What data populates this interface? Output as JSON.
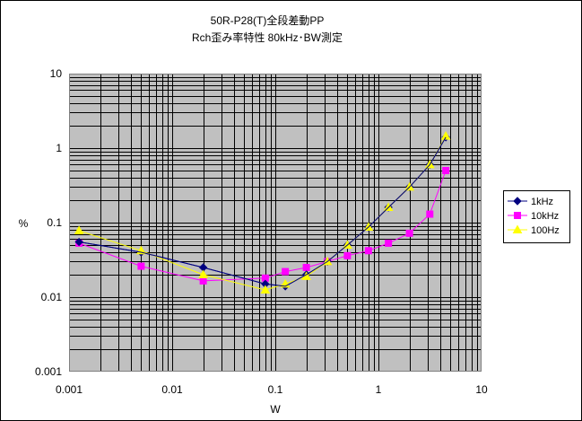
{
  "chart_data": {
    "type": "line",
    "title": "50R-P28(T)全段差動PP",
    "subtitle": "Rch歪み率特性  80kHz･BW測定",
    "xlabel": "W",
    "ylabel": "%",
    "x_scale": "log",
    "y_scale": "log",
    "xlim": [
      0.001,
      10
    ],
    "ylim": [
      0.001,
      10
    ],
    "x_ticks": [
      0.001,
      0.01,
      0.1,
      1,
      10
    ],
    "x_tick_labels": [
      "0.001",
      "0.01",
      "0.1",
      "1",
      "10"
    ],
    "y_ticks": [
      0.001,
      0.01,
      0.1,
      1,
      10
    ],
    "y_tick_labels": [
      "0.001",
      "0.01",
      "0.1",
      "1",
      "10"
    ],
    "grid": true,
    "legend_position": "right",
    "plot_background": "#c0c0c0",
    "series": [
      {
        "name": "1kHz",
        "color": "#000080",
        "marker": "diamond",
        "points": [
          [
            0.00125,
            0.055
          ],
          [
            0.005,
            0.04
          ],
          [
            0.02,
            0.025
          ],
          [
            0.08,
            0.015
          ],
          [
            0.125,
            0.014
          ],
          [
            0.2,
            0.02
          ],
          [
            0.32,
            0.03
          ],
          [
            0.5,
            0.05
          ],
          [
            0.8,
            0.087
          ],
          [
            1.25,
            0.16
          ],
          [
            2,
            0.3
          ],
          [
            3.15,
            0.6
          ],
          [
            4.5,
            1.4
          ]
        ]
      },
      {
        "name": "10kHz",
        "color": "#ff00ff",
        "marker": "square",
        "points": [
          [
            0.00125,
            0.053
          ],
          [
            0.005,
            0.026
          ],
          [
            0.02,
            0.0165
          ],
          [
            0.08,
            0.018
          ],
          [
            0.125,
            0.022
          ],
          [
            0.2,
            0.025
          ],
          [
            0.32,
            0.03
          ],
          [
            0.5,
            0.036
          ],
          [
            0.8,
            0.042
          ],
          [
            1.25,
            0.053
          ],
          [
            2,
            0.072
          ],
          [
            3.15,
            0.13
          ],
          [
            4.5,
            0.5
          ]
        ]
      },
      {
        "name": "100Hz",
        "color": "#ffff00",
        "marker": "triangle",
        "points": [
          [
            0.00125,
            0.078
          ],
          [
            0.005,
            0.042
          ],
          [
            0.02,
            0.02
          ],
          [
            0.08,
            0.0125
          ],
          [
            0.125,
            0.015
          ],
          [
            0.2,
            0.019
          ],
          [
            0.32,
            0.03
          ],
          [
            0.5,
            0.05
          ],
          [
            0.8,
            0.087
          ],
          [
            1.25,
            0.16
          ],
          [
            2,
            0.3
          ],
          [
            3.15,
            0.6
          ],
          [
            4.5,
            1.45
          ]
        ]
      }
    ]
  }
}
